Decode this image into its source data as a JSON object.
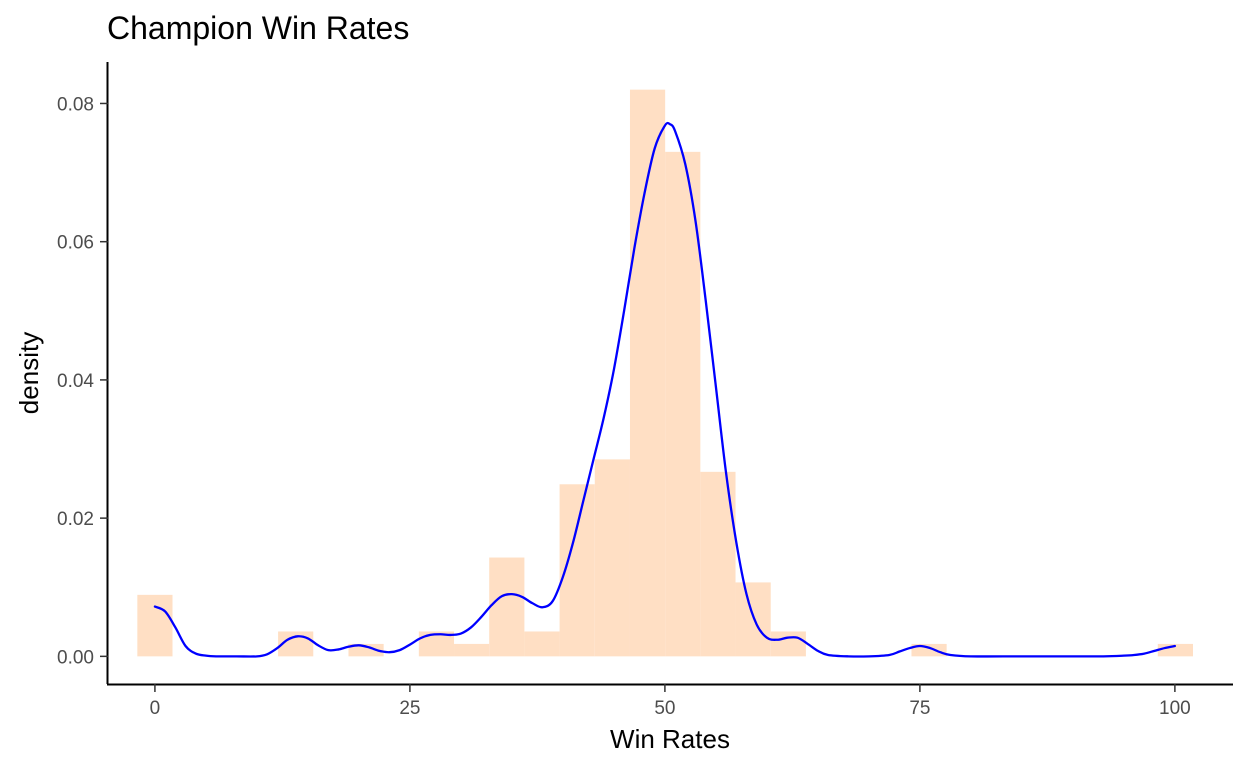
{
  "chart_data": {
    "type": "bar",
    "title": "Champion Win Rates",
    "xlabel": "Win Rates",
    "ylabel": "density",
    "xlim": [
      -4.6,
      105.6
    ],
    "ylim": [
      -0.004,
      0.086
    ],
    "x_ticks": [
      0,
      25,
      50,
      75,
      100
    ],
    "y_ticks": [
      0.0,
      0.02,
      0.04,
      0.06,
      0.08
    ],
    "x_tick_labels": [
      "0",
      "25",
      "50",
      "75",
      "100"
    ],
    "y_tick_labels": [
      "0.00",
      "0.02",
      "0.04",
      "0.06",
      "0.08"
    ],
    "grid": false,
    "legend": "none",
    "histogram": {
      "binwidth": 3.45,
      "fill": "#ffdfc4",
      "bins": [
        {
          "x": 0.0,
          "density": 0.0089
        },
        {
          "x": 13.8,
          "density": 0.0036
        },
        {
          "x": 20.7,
          "density": 0.0018
        },
        {
          "x": 27.6,
          "density": 0.0036
        },
        {
          "x": 31.05,
          "density": 0.0018
        },
        {
          "x": 34.5,
          "density": 0.0143
        },
        {
          "x": 37.95,
          "density": 0.0036
        },
        {
          "x": 41.4,
          "density": 0.0249
        },
        {
          "x": 44.85,
          "density": 0.0285
        },
        {
          "x": 48.3,
          "density": 0.082
        },
        {
          "x": 51.75,
          "density": 0.073
        },
        {
          "x": 55.2,
          "density": 0.0267
        },
        {
          "x": 58.65,
          "density": 0.0107
        },
        {
          "x": 62.1,
          "density": 0.0036
        },
        {
          "x": 75.9,
          "density": 0.0018
        },
        {
          "x": 100.05,
          "density": 0.0018
        }
      ]
    },
    "density_curve": {
      "color": "#0000ff",
      "x": [
        0,
        1,
        2,
        3,
        4,
        5,
        6,
        8,
        10,
        11,
        12,
        13,
        14,
        15,
        16,
        17,
        18,
        19,
        20,
        21,
        22,
        23,
        24,
        25,
        26,
        27,
        28,
        29,
        30,
        31,
        32,
        33,
        34,
        35,
        36,
        37,
        38,
        39,
        40,
        41,
        42,
        43,
        44,
        45,
        46,
        47,
        48,
        49,
        50,
        50.5,
        51,
        52,
        53,
        54,
        55,
        56,
        57,
        58,
        59,
        60,
        61,
        62,
        63,
        64,
        65,
        66,
        68,
        70,
        72,
        73,
        74,
        75,
        76,
        77,
        78,
        80,
        85,
        90,
        93,
        95,
        96,
        97,
        98,
        99,
        100
      ],
      "y": [
        0.0072,
        0.0065,
        0.0042,
        0.0015,
        0.0004,
        0.0001,
        0.0,
        0.0,
        0.0,
        0.0003,
        0.0012,
        0.0024,
        0.0029,
        0.0026,
        0.0016,
        0.0009,
        0.001,
        0.0014,
        0.0016,
        0.0013,
        0.0008,
        0.0006,
        0.0009,
        0.0017,
        0.0026,
        0.0031,
        0.0032,
        0.0031,
        0.0033,
        0.0042,
        0.0057,
        0.0074,
        0.0087,
        0.009,
        0.0086,
        0.0077,
        0.0071,
        0.008,
        0.0115,
        0.0165,
        0.0225,
        0.0285,
        0.0345,
        0.0415,
        0.05,
        0.059,
        0.067,
        0.0735,
        0.0768,
        0.077,
        0.076,
        0.0712,
        0.063,
        0.0515,
        0.039,
        0.0265,
        0.0165,
        0.009,
        0.0046,
        0.0027,
        0.0024,
        0.0027,
        0.0027,
        0.0018,
        0.0008,
        0.0002,
        0.0,
        0.0,
        0.0002,
        0.0007,
        0.0012,
        0.0015,
        0.0012,
        0.0006,
        0.0002,
        0.0,
        0.0,
        0.0,
        0.0,
        0.0001,
        0.0002,
        0.0004,
        0.0008,
        0.0012,
        0.0015
      ]
    }
  }
}
